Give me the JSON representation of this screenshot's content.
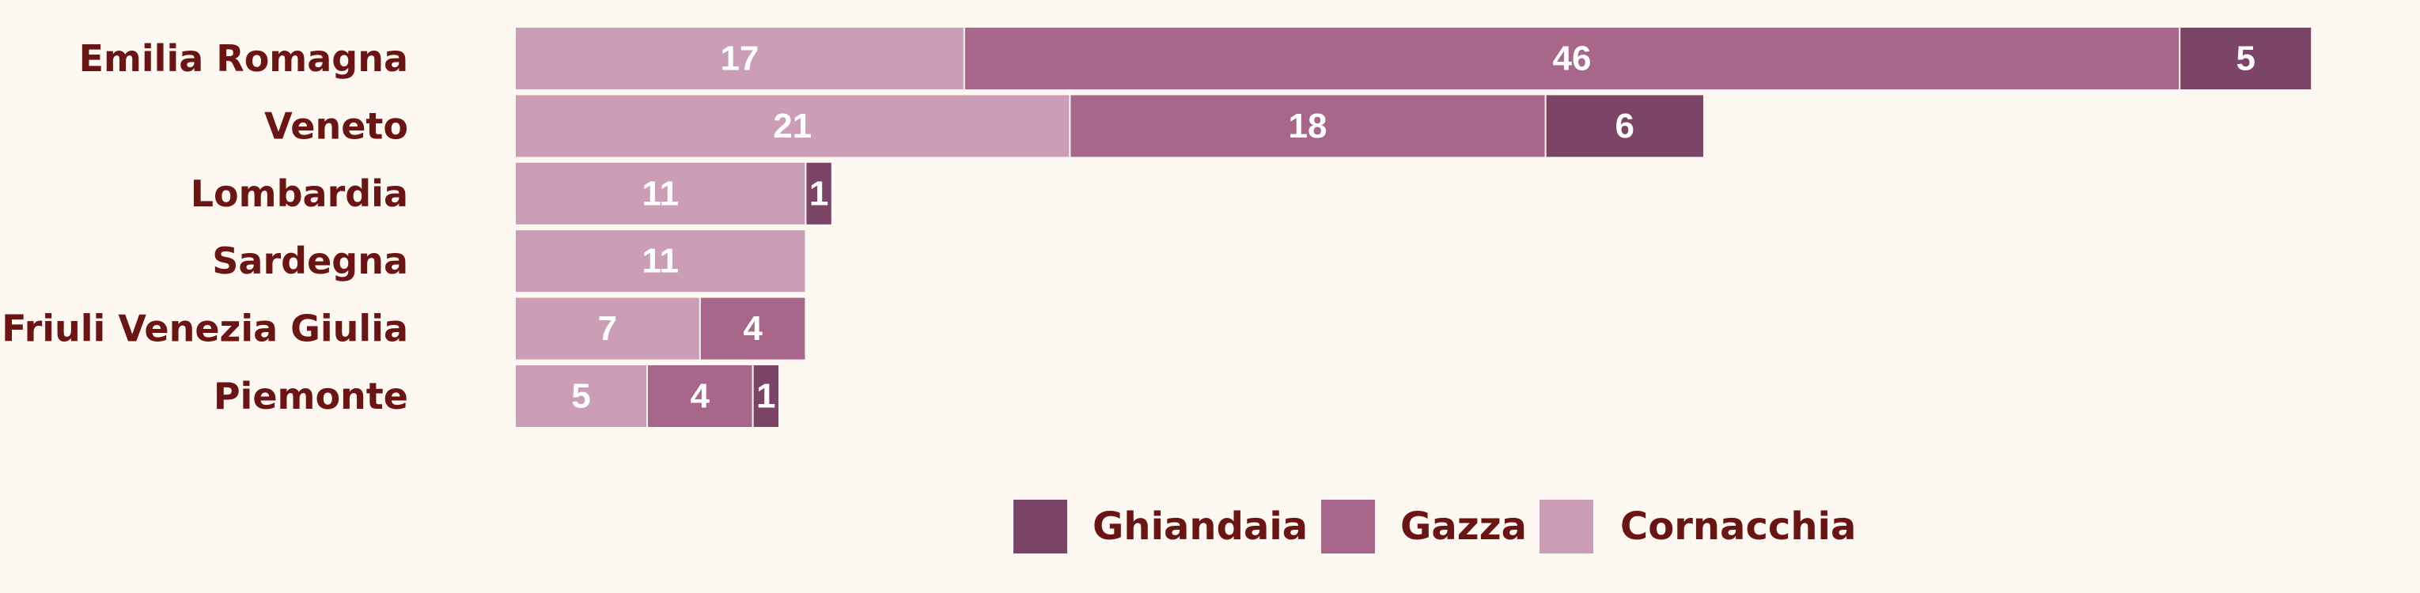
{
  "chart_data": {
    "type": "bar",
    "orientation": "horizontal",
    "stacked": true,
    "categories": [
      "Emilia Romagna",
      "Veneto",
      "Lombardia",
      "Sardegna",
      "Friuli Venezia Giulia",
      "Piemonte"
    ],
    "series": [
      {
        "name": "Cornacchia",
        "color": "#cb9db7",
        "values": [
          17,
          21,
          11,
          11,
          7,
          5
        ]
      },
      {
        "name": "Gazza",
        "color": "#a8668a",
        "values": [
          46,
          18,
          0,
          0,
          4,
          4
        ]
      },
      {
        "name": "Ghiandaia",
        "color": "#7c4567",
        "values": [
          5,
          6,
          1,
          0,
          0,
          1
        ]
      }
    ],
    "legend_order": [
      "Ghiandaia",
      "Gazza",
      "Cornacchia"
    ],
    "legend_position": "bottom",
    "xlim": [
      0,
      68
    ],
    "grid": false,
    "axes_visible": false,
    "title": "",
    "xlabel": "",
    "ylabel": ""
  },
  "colors": {
    "background": "#fdf8f2",
    "label_text": "#6b1414",
    "value_text": "#ffffff"
  }
}
